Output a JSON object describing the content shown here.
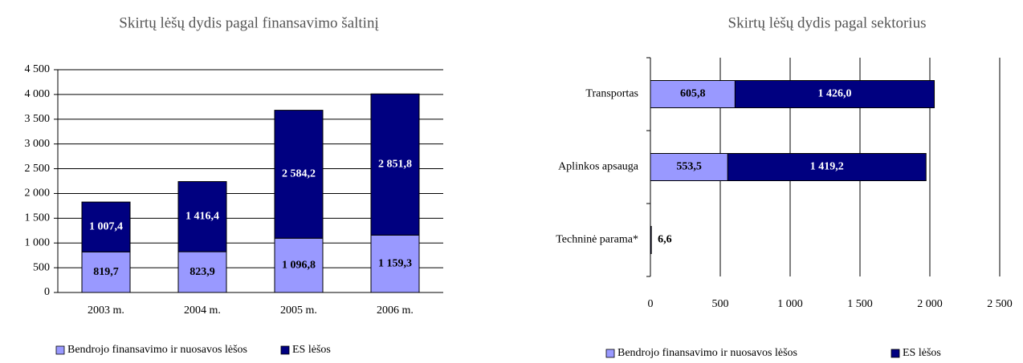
{
  "chart_data": [
    {
      "type": "bar",
      "title": "Skirtų lėšų dydis pagal finansavimo šaltinį",
      "categories": [
        "2003 m.",
        "2004 m.",
        "2005 m.",
        "2006 m."
      ],
      "series": [
        {
          "name": "Bendrojo finansavimo ir nuosavos lėšos",
          "color": "#9999ff",
          "values": [
            819.7,
            823.9,
            1096.8,
            1159.3
          ],
          "value_labels": [
            "819,7",
            "823,9",
            "1 096,8",
            "1 159,3"
          ]
        },
        {
          "name": "ES lėšos",
          "color": "#000080",
          "values": [
            1007.4,
            1416.4,
            2584.2,
            2851.8
          ],
          "value_labels": [
            "1 007,4",
            "1 416,4",
            "2 584,2",
            "2 851,8"
          ]
        }
      ],
      "ylim": [
        0,
        4500
      ],
      "yticks": [
        0,
        500,
        {
          "value": 1000,
          "label": "1 000"
        },
        {
          "value": 1500,
          "label": "1 500"
        },
        {
          "value": 2000,
          "label": "2 000"
        },
        {
          "value": 2500,
          "label": "2 500"
        },
        {
          "value": 3000,
          "label": "3 000"
        },
        {
          "value": 3500,
          "label": "3 500"
        },
        {
          "value": 4000,
          "label": "4 000"
        },
        {
          "value": 4500,
          "label": "4 500"
        }
      ],
      "grid": true,
      "stacked": true
    },
    {
      "type": "hbar",
      "title": "Skirtų lėšų dydis pagal sektorius",
      "categories": [
        "Transportas",
        "Aplinkos apsauga",
        "Techninė parama*"
      ],
      "series": [
        {
          "name": "Bendrojo finansavimo ir nuosavos lėšos",
          "color": "#9999ff",
          "values": [
            605.8,
            553.5,
            null
          ],
          "value_labels": [
            "605,8",
            "553,5",
            null
          ]
        },
        {
          "name": "ES lėšos",
          "color": "#000080",
          "values": [
            1426.0,
            1419.2,
            6.6
          ],
          "value_labels": [
            "1 426,0",
            "1 419,2",
            "6,6"
          ]
        }
      ],
      "xlim": [
        0,
        2500
      ],
      "xticks": [
        0,
        500,
        {
          "value": 1000,
          "label": "1 000"
        },
        {
          "value": 1500,
          "label": "1 500"
        },
        {
          "value": 2000,
          "label": "2 000"
        },
        {
          "value": 2500,
          "label": "2 500"
        }
      ],
      "grid": true,
      "stacked": true
    }
  ]
}
